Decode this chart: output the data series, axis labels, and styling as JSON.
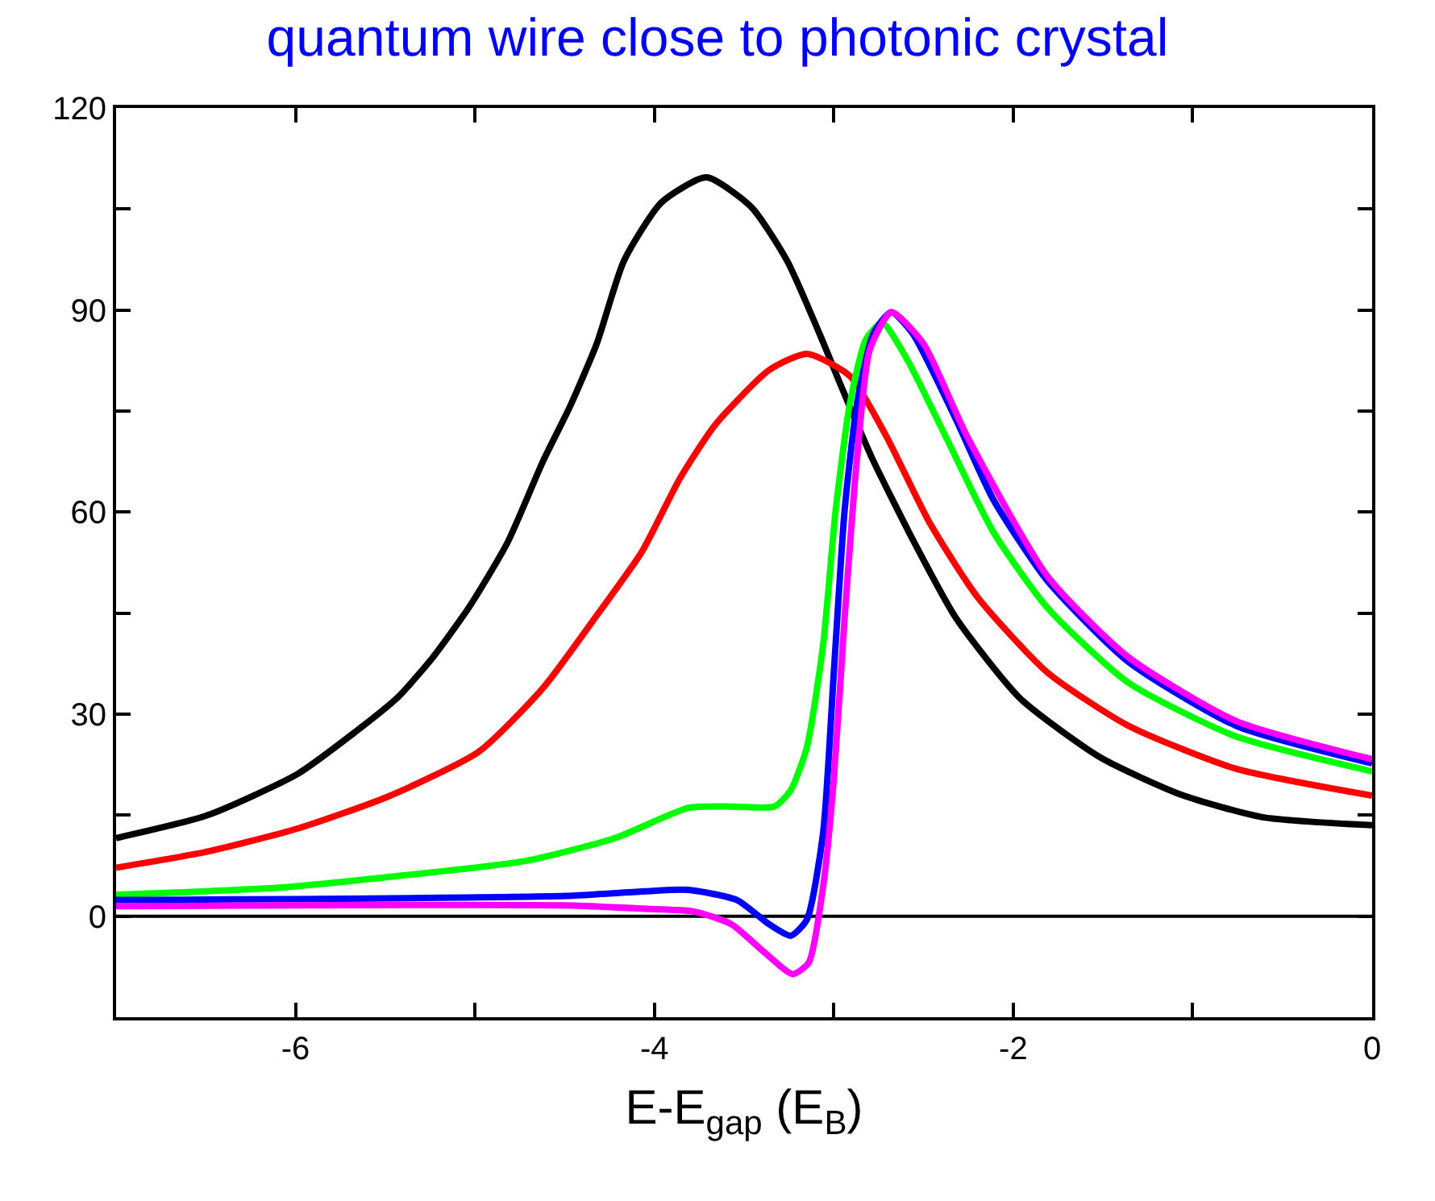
{
  "chart_data": {
    "type": "line",
    "title": "quantum wire close to photonic crystal",
    "xlabel": "E-E$_{gap}$ (E$_{B}$)",
    "xlim": [
      -7,
      0
    ],
    "xticks": [
      {
        "value": -7,
        "label": null
      },
      -6,
      {
        "value": -5,
        "label": null
      },
      -4,
      {
        "value": -3,
        "label": null
      },
      -2,
      {
        "value": -1,
        "label": null
      },
      0
    ],
    "ylim": [
      -15,
      120
    ],
    "yticks": [
      {
        "value": -15,
        "label": null
      },
      0,
      {
        "value": 15,
        "label": null
      },
      30,
      {
        "value": 45,
        "label": null
      },
      60,
      {
        "value": 75,
        "label": null
      },
      90,
      {
        "value": 105,
        "label": null
      },
      120
    ],
    "grid": false,
    "legend": false,
    "marker": "none",
    "line_style": "solid",
    "ref_lines": [
      {
        "axis": "y",
        "value": 0,
        "color": "#000000"
      }
    ],
    "series": [
      {
        "color": "#000000",
        "x": [
          -7,
          -6.49,
          -5.99,
          -5.68,
          -5.43,
          -5.23,
          -5.03,
          -4.82,
          -4.62,
          -4.47,
          -4.32,
          -4.17,
          -3.96,
          -3.71,
          -3.46,
          -3.26,
          -3.08,
          -2.97,
          -2.79,
          -2.55,
          -2.32,
          -1.96,
          -1.51,
          -1.06,
          -0.61,
          0
        ],
        "values": [
          11.6,
          15,
          21.1,
          27.1,
          32.5,
          38.6,
          46,
          55.4,
          67.6,
          75.7,
          85.1,
          97.3,
          106,
          109.7,
          105.3,
          97.3,
          86.5,
          79.4,
          68.2,
          55.4,
          44.3,
          32.3,
          23.5,
          18,
          14.7,
          13.5
        ]
      },
      {
        "color": "#ff0000",
        "x": [
          -7,
          -6.49,
          -5.99,
          -5.49,
          -4.98,
          -4.62,
          -4.32,
          -4.07,
          -3.86,
          -3.66,
          -3.36,
          -3.15,
          -2.91,
          -2.71,
          -2.47,
          -2.2,
          -1.81,
          -1.36,
          -0.76,
          0
        ],
        "values": [
          7.2,
          9.6,
          13,
          17.7,
          24.4,
          33.9,
          44.7,
          54.1,
          64.9,
          73,
          81.1,
          83.5,
          80.2,
          71.4,
          58.6,
          47.4,
          36.2,
          28.3,
          21.9,
          17.9
        ]
      },
      {
        "color": "#00ff00",
        "x": [
          -7,
          -6.11,
          -5.49,
          -4.72,
          -4.22,
          -3.81,
          -3.6,
          -3.33,
          -3.24,
          -3.15,
          -3.06,
          -2.99,
          -2.91,
          -2.82,
          -2.73,
          -2.59,
          -2.38,
          -2.11,
          -1.81,
          -1.36,
          -0.76,
          0
        ],
        "values": [
          3.2,
          4.2,
          5.8,
          8.2,
          11.6,
          16.1,
          16.3,
          16.3,
          18.7,
          25.1,
          40.2,
          60.2,
          76.2,
          85.7,
          88.1,
          82.6,
          71.4,
          57,
          45.8,
          34.7,
          26.7,
          21.5
        ]
      },
      {
        "color": "#0000ff",
        "x": [
          -7,
          -4.5,
          -4.05,
          -3.81,
          -3.54,
          -3.36,
          -3.24,
          -3.15,
          -3.06,
          -3.0,
          -2.94,
          -2.87,
          -2.78,
          -2.68,
          -2.56,
          -2.32,
          -2.11,
          -1.81,
          -1.36,
          -0.76,
          0
        ],
        "values": [
          2.4,
          3,
          3.7,
          3.9,
          2.4,
          -1.2,
          -2.9,
          -0.5,
          12.3,
          36.2,
          60.2,
          76.2,
          86.5,
          89.7,
          86.5,
          73.8,
          61.8,
          49.8,
          37.8,
          28.3,
          22.7
        ]
      },
      {
        "color": "#ff00ff",
        "x": [
          -7,
          -4.5,
          -4.05,
          -3.78,
          -3.57,
          -3.39,
          -3.23,
          -3.14,
          -3.06,
          -3.0,
          -2.94,
          -2.87,
          -2.8,
          -2.68,
          -2.5,
          -2.26,
          -1.81,
          -1.36,
          -0.76,
          0
        ],
        "values": [
          1.5,
          1.6,
          1.1,
          0.7,
          -1.2,
          -5.3,
          -8.6,
          -6.9,
          4.3,
          20.3,
          44.2,
          68.2,
          84.1,
          89.7,
          85,
          71.4,
          50.5,
          38.5,
          29,
          23.3
        ]
      }
    ]
  }
}
